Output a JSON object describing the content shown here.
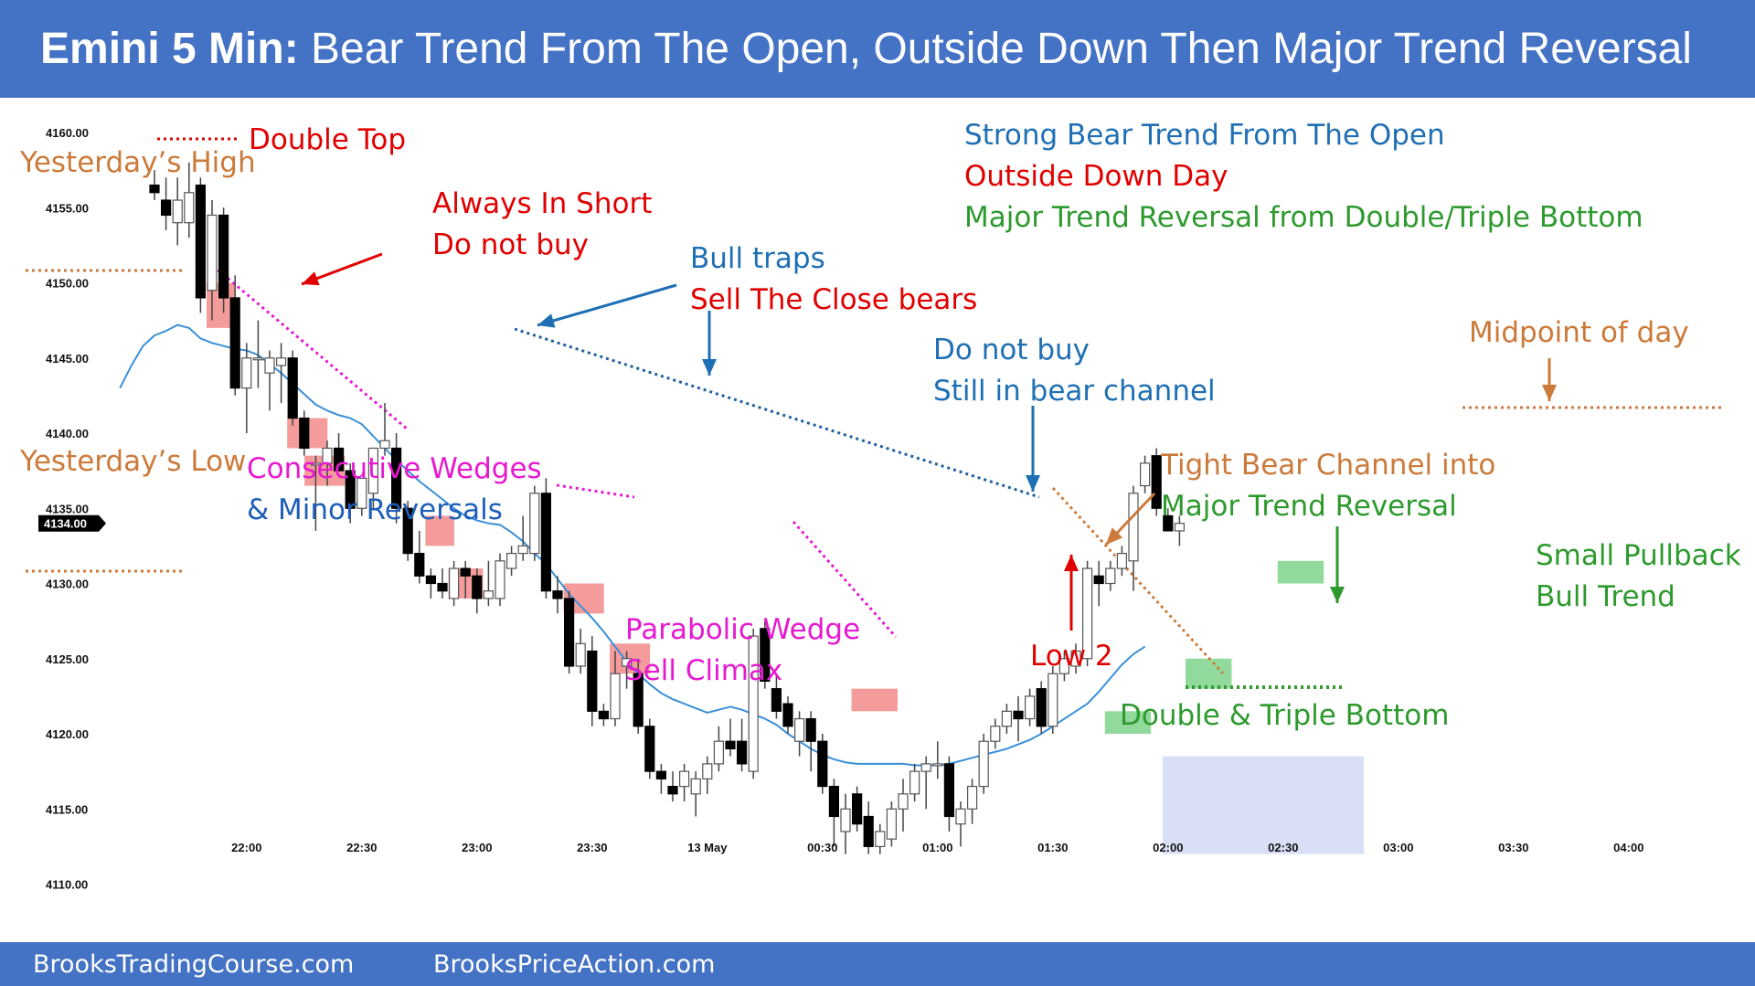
{
  "header": {
    "title_bold": "Emini 5 Min:",
    "title_rest": " Bear Trend From The Open, Outside Down Then Major Trend Reversal"
  },
  "footer": {
    "left": "BrooksTradingCourse.com",
    "right": "BrooksPriceAction.com"
  },
  "colors": {
    "header": "#4472c4",
    "red": "#e00000",
    "blue": "#1f6fb4",
    "magenta": "#e619d1",
    "orange": "#cc7a3a",
    "green": "#2e9a2e",
    "ema": "#3a8fd8"
  },
  "chart_data": {
    "type": "candlestick",
    "ylim": [
      4108,
      4162
    ],
    "y_ticks": [
      "4160.00",
      "4155.00",
      "4150.00",
      "4145.00",
      "4140.00",
      "4135.00",
      "4130.00",
      "4125.00",
      "4120.00",
      "4115.00",
      "4110.00"
    ],
    "y_tick_values": [
      4160,
      4155,
      4150,
      4145,
      4140,
      4135,
      4130,
      4125,
      4120,
      4115,
      4110
    ],
    "current_price": "4134.00",
    "current_price_value": 4134,
    "x_ticks": [
      "22:00",
      "22:30",
      "23:00",
      "23:30",
      "13 May",
      "00:30",
      "01:00",
      "01:30",
      "02:00",
      "02:30",
      "03:00",
      "03:30",
      "04:00"
    ],
    "x_tick_bars": [
      8,
      18,
      28,
      38,
      48,
      58,
      68,
      78,
      88,
      98,
      108,
      118,
      128
    ],
    "candles": [
      [
        4156.5,
        4157.5,
        4155.5,
        4156.0
      ],
      [
        4155.5,
        4157.0,
        4153.5,
        4154.5
      ],
      [
        4154.0,
        4157.0,
        4152.5,
        4155.5
      ],
      [
        4154.0,
        4158.0,
        4153.0,
        4156.0
      ],
      [
        4156.5,
        4157.0,
        4148.0,
        4149.0
      ],
      [
        4149.5,
        4155.5,
        4147.5,
        4154.5
      ],
      [
        4154.5,
        4155.0,
        4148.0,
        4149.0
      ],
      [
        4149.0,
        4150.5,
        4142.5,
        4143.0
      ],
      [
        4143.0,
        4146.0,
        4140.0,
        4145.0
      ],
      [
        4145.0,
        4147.5,
        4143.0,
        4145.0
      ],
      [
        4144.0,
        4145.5,
        4141.5,
        4145.0
      ],
      [
        4144.5,
        4146.0,
        4142.0,
        4145.0
      ],
      [
        4145.0,
        4145.5,
        4140.5,
        4141.0
      ],
      [
        4141.0,
        4141.5,
        4138.5,
        4139.0
      ],
      [
        4138.0,
        4138.5,
        4133.5,
        4138.0
      ],
      [
        4138.0,
        4139.5,
        4136.5,
        4139.0
      ],
      [
        4139.0,
        4140.0,
        4137.5,
        4137.5
      ],
      [
        4137.5,
        4138.0,
        4134.0,
        4135.0
      ],
      [
        4135.0,
        4137.0,
        4134.5,
        4137.0
      ],
      [
        4136.0,
        4139.0,
        4135.0,
        4139.0
      ],
      [
        4139.0,
        4142.0,
        4138.5,
        4139.5
      ],
      [
        4139.0,
        4140.0,
        4134.0,
        4135.0
      ],
      [
        4135.0,
        4135.5,
        4131.5,
        4132.0
      ],
      [
        4132.0,
        4133.5,
        4130.0,
        4130.5
      ],
      [
        4130.5,
        4131.0,
        4129.0,
        4130.0
      ],
      [
        4130.0,
        4131.0,
        4129.0,
        4129.5
      ],
      [
        4129.0,
        4131.5,
        4128.5,
        4131.0
      ],
      [
        4131.0,
        4131.5,
        4129.0,
        4130.5
      ],
      [
        4130.5,
        4131.0,
        4128.0,
        4129.0
      ],
      [
        4129.0,
        4131.5,
        4128.5,
        4129.5
      ],
      [
        4129.0,
        4132.0,
        4128.5,
        4131.5
      ],
      [
        4131.0,
        4132.5,
        4130.5,
        4132.0
      ],
      [
        4132.0,
        4134.5,
        4131.5,
        4132.5
      ],
      [
        4132.0,
        4136.5,
        4131.5,
        4136.0
      ],
      [
        4136.0,
        4137.0,
        4129.0,
        4129.5
      ],
      [
        4129.5,
        4130.5,
        4128.0,
        4129.0
      ],
      [
        4129.0,
        4129.5,
        4124.0,
        4124.5
      ],
      [
        4124.5,
        4127.0,
        4124.0,
        4126.0
      ],
      [
        4125.5,
        4126.5,
        4120.5,
        4121.5
      ],
      [
        4121.5,
        4122.0,
        4120.5,
        4121.0
      ],
      [
        4121.0,
        4125.5,
        4120.5,
        4124.0
      ],
      [
        4124.5,
        4125.5,
        4123.0,
        4125.0
      ],
      [
        4124.0,
        4125.0,
        4120.0,
        4120.5
      ],
      [
        4120.5,
        4121.0,
        4117.0,
        4117.5
      ],
      [
        4117.5,
        4118.0,
        4116.0,
        4117.0
      ],
      [
        4116.5,
        4117.5,
        4115.5,
        4116.0
      ],
      [
        4116.5,
        4118.0,
        4115.5,
        4117.5
      ],
      [
        4116.0,
        4117.5,
        4114.5,
        4117.0
      ],
      [
        4117.0,
        4118.5,
        4116.0,
        4118.0
      ],
      [
        4118.0,
        4120.5,
        4117.5,
        4119.5
      ],
      [
        4119.5,
        4121.0,
        4118.5,
        4119.0
      ],
      [
        4119.5,
        4121.0,
        4117.5,
        4118.0
      ],
      [
        4117.5,
        4127.0,
        4117.0,
        4126.5
      ],
      [
        4127.0,
        4127.5,
        4123.0,
        4123.5
      ],
      [
        4123.0,
        4124.0,
        4121.0,
        4121.5
      ],
      [
        4122.0,
        4122.5,
        4120.0,
        4120.5
      ],
      [
        4119.5,
        4121.5,
        4118.5,
        4121.0
      ],
      [
        4121.0,
        4121.5,
        4117.5,
        4119.5
      ],
      [
        4119.5,
        4120.0,
        4116.0,
        4116.5
      ],
      [
        4116.5,
        4117.0,
        4112.5,
        4114.5
      ],
      [
        4113.5,
        4116.0,
        4112.0,
        4115.0
      ],
      [
        4116.0,
        4116.5,
        4113.5,
        4114.0
      ],
      [
        4114.5,
        4115.5,
        4112.0,
        4112.5
      ],
      [
        4112.5,
        4114.0,
        4112.0,
        4113.5
      ],
      [
        4113.0,
        4115.5,
        4112.5,
        4115.0
      ],
      [
        4115.0,
        4117.0,
        4113.5,
        4116.0
      ],
      [
        4116.0,
        4118.0,
        4115.5,
        4117.5
      ],
      [
        4117.5,
        4118.5,
        4115.0,
        4118.0
      ],
      [
        4118.0,
        4119.5,
        4117.0,
        4118.0
      ],
      [
        4118.0,
        4118.5,
        4113.5,
        4114.5
      ],
      [
        4114.0,
        4115.5,
        4112.5,
        4115.0
      ],
      [
        4115.0,
        4117.0,
        4114.0,
        4116.5
      ],
      [
        4116.5,
        4120.0,
        4116.0,
        4119.5
      ],
      [
        4119.5,
        4121.0,
        4119.0,
        4120.5
      ],
      [
        4120.5,
        4122.0,
        4120.0,
        4121.5
      ],
      [
        4121.5,
        4122.5,
        4119.5,
        4121.0
      ],
      [
        4121.0,
        4123.0,
        4120.5,
        4122.5
      ],
      [
        4123.0,
        4123.5,
        4120.0,
        4120.5
      ],
      [
        4120.5,
        4124.5,
        4120.0,
        4124.0
      ],
      [
        4124.0,
        4125.5,
        4123.5,
        4125.0
      ],
      [
        4124.5,
        4126.0,
        4124.0,
        4125.5
      ],
      [
        4125.0,
        4131.5,
        4124.5,
        4131.0
      ],
      [
        4130.5,
        4131.5,
        4128.5,
        4130.0
      ],
      [
        4130.0,
        4131.5,
        4129.5,
        4131.0
      ],
      [
        4131.0,
        4132.5,
        4130.5,
        4132.0
      ],
      [
        4131.5,
        4136.5,
        4129.5,
        4136.0
      ],
      [
        4136.5,
        4138.5,
        4136.0,
        4138.0
      ],
      [
        4138.5,
        4139.0,
        4134.5,
        4135.0
      ],
      [
        4134.5,
        4135.0,
        4133.5,
        4133.5
      ],
      [
        4133.5,
        4134.5,
        4132.5,
        4134.0
      ]
    ],
    "ema": [
      4143,
      4144.5,
      4145.8,
      4146.5,
      4146.8,
      4147.2,
      4147.0,
      4146.3,
      4146.0,
      4145.8,
      4145.6,
      4145.5,
      4145.2,
      4144.6,
      4144.0,
      4143.3,
      4142.6,
      4141.9,
      4141.5,
      4141.2,
      4141.0,
      4140.6,
      4139.8,
      4139.0,
      4138.2,
      4137.5,
      4136.8,
      4136.2,
      4135.6,
      4135.0,
      4134.5,
      4134.2,
      4134.0,
      4133.9,
      4133.4,
      4132.8,
      4132.0,
      4131.3,
      4130.3,
      4129.3,
      4128.5,
      4127.7,
      4126.8,
      4125.8,
      4124.8,
      4124.0,
      4123.3,
      4122.7,
      4122.3,
      4122.0,
      4121.7,
      4121.4,
      4121.6,
      4121.8,
      4121.6,
      4121.3,
      4121.0,
      4120.6,
      4120.0,
      4119.5,
      4119.0,
      4118.6,
      4118.3,
      4118.1,
      4118.0,
      4118.0,
      4118.0,
      4118.0,
      4118.0,
      4117.9,
      4117.9,
      4117.9,
      4118.0,
      4118.2,
      4118.4,
      4118.6,
      4118.8,
      4119.0,
      4119.3,
      4119.6,
      4120.0,
      4120.5,
      4121.0,
      4121.5,
      4122.0,
      4122.8,
      4123.7,
      4124.6,
      4125.3,
      4125.8
    ],
    "annotations": {
      "double_top": "Double Top",
      "yesterdays_high": "Yesterday’s High",
      "yesterdays_low": "Yesterday’s Low",
      "always_in_short_1": "Always In Short",
      "always_in_short_2": "Do not buy",
      "bull_traps_1": "Bull traps",
      "bull_traps_2": "Sell The Close bears",
      "strong_bear": "Strong Bear Trend From The Open",
      "outside_down": "Outside Down Day",
      "major_trend": "Major Trend Reversal from Double/Triple Bottom",
      "do_not_buy_1": "Do not buy",
      "do_not_buy_2": "Still in bear channel",
      "midpoint": "Midpoint of day",
      "consec_wedges_1": "Consecutive Wedges",
      "consec_wedges_2": "& Minor Reversals",
      "tight_bear_1": "Tight Bear Channel into",
      "tight_bear_2": "Major Trend Reversal",
      "small_pullback_1": "Small Pullback",
      "small_pullback_2": "Bull Trend",
      "parabolic_1": "Parabolic Wedge",
      "parabolic_2": "Sell Climax",
      "low2": "Low 2",
      "double_triple": "Double & Triple Bottom"
    }
  }
}
